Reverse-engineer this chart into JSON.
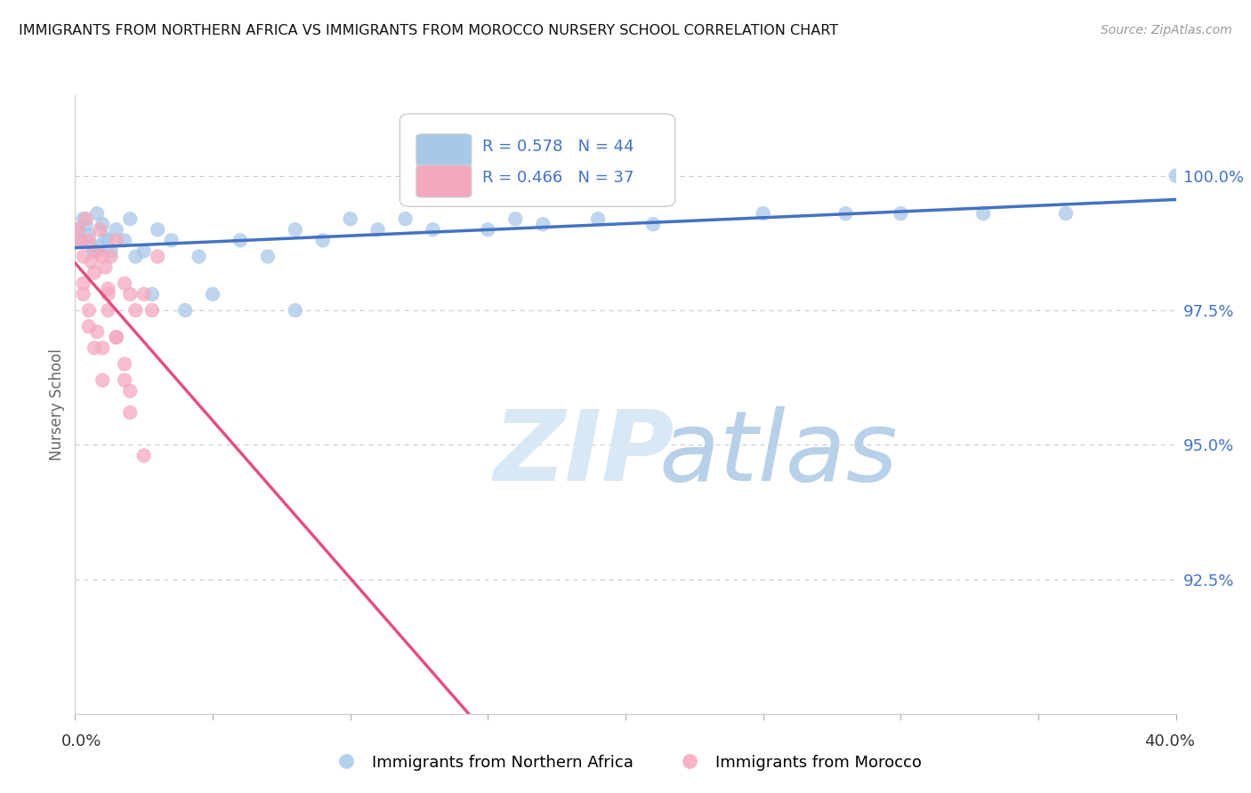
{
  "title": "IMMIGRANTS FROM NORTHERN AFRICA VS IMMIGRANTS FROM MOROCCO NURSERY SCHOOL CORRELATION CHART",
  "source": "Source: ZipAtlas.com",
  "ylabel": "Nursery School",
  "ytick_labels": [
    "100.0%",
    "97.5%",
    "95.0%",
    "92.5%"
  ],
  "ytick_values": [
    1.0,
    0.975,
    0.95,
    0.925
  ],
  "xlim": [
    0.0,
    0.4
  ],
  "ylim": [
    0.9,
    1.015
  ],
  "legend_blue_r": "R = 0.578",
  "legend_blue_n": "N = 44",
  "legend_pink_r": "R = 0.466",
  "legend_pink_n": "N = 37",
  "legend_xlabel_blue": "Immigrants from Northern Africa",
  "legend_xlabel_pink": "Immigrants from Morocco",
  "blue_color": "#a8c8e8",
  "pink_color": "#f4a8be",
  "blue_line_color": "#4472c4",
  "pink_line_color": "#e05080",
  "blue_scatter_x": [
    0.001,
    0.002,
    0.003,
    0.004,
    0.005,
    0.006,
    0.007,
    0.008,
    0.009,
    0.01,
    0.011,
    0.012,
    0.013,
    0.015,
    0.018,
    0.02,
    0.022,
    0.025,
    0.028,
    0.03,
    0.035,
    0.04,
    0.045,
    0.05,
    0.06,
    0.07,
    0.08,
    0.09,
    0.1,
    0.11,
    0.13,
    0.15,
    0.17,
    0.19,
    0.21,
    0.25,
    0.28,
    0.3,
    0.33,
    0.36,
    0.08,
    0.12,
    0.16,
    0.4
  ],
  "blue_scatter_y": [
    0.99,
    0.988,
    0.992,
    0.991,
    0.989,
    0.987,
    0.986,
    0.993,
    0.987,
    0.991,
    0.9885,
    0.988,
    0.986,
    0.99,
    0.988,
    0.992,
    0.985,
    0.986,
    0.978,
    0.99,
    0.988,
    0.975,
    0.985,
    0.978,
    0.988,
    0.985,
    0.99,
    0.988,
    0.992,
    0.99,
    0.99,
    0.99,
    0.991,
    0.992,
    0.991,
    0.993,
    0.993,
    0.993,
    0.993,
    0.993,
    0.975,
    0.992,
    0.992,
    1.0
  ],
  "pink_scatter_x": [
    0.001,
    0.002,
    0.003,
    0.004,
    0.005,
    0.006,
    0.007,
    0.008,
    0.009,
    0.01,
    0.011,
    0.012,
    0.013,
    0.015,
    0.018,
    0.02,
    0.022,
    0.025,
    0.028,
    0.03,
    0.003,
    0.005,
    0.007,
    0.01,
    0.012,
    0.015,
    0.018,
    0.02,
    0.003,
    0.005,
    0.008,
    0.01,
    0.012,
    0.015,
    0.018,
    0.02,
    0.025
  ],
  "pink_scatter_y": [
    0.99,
    0.988,
    0.985,
    0.992,
    0.988,
    0.984,
    0.982,
    0.986,
    0.99,
    0.985,
    0.983,
    0.979,
    0.985,
    0.988,
    0.98,
    0.978,
    0.975,
    0.978,
    0.975,
    0.985,
    0.978,
    0.972,
    0.968,
    0.962,
    0.975,
    0.97,
    0.965,
    0.96,
    0.98,
    0.975,
    0.971,
    0.968,
    0.978,
    0.97,
    0.962,
    0.956,
    0.948
  ],
  "watermark_zip_color": "#d8e8f4",
  "watermark_atlas_color": "#b8d0e8",
  "background_color": "#ffffff",
  "grid_color": "#cccccc"
}
